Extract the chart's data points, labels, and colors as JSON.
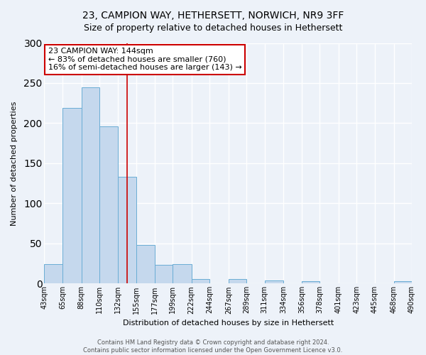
{
  "title": "23, CAMPION WAY, HETHERSETT, NORWICH, NR9 3FF",
  "subtitle": "Size of property relative to detached houses in Hethersett",
  "xlabel": "Distribution of detached houses by size in Hethersett",
  "ylabel": "Number of detached properties",
  "bin_edges": [
    43,
    65,
    88,
    110,
    132,
    155,
    177,
    199,
    222,
    244,
    267,
    289,
    311,
    334,
    356,
    378,
    401,
    423,
    445,
    468,
    490
  ],
  "bin_labels": [
    "43sqm",
    "65sqm",
    "88sqm",
    "110sqm",
    "132sqm",
    "155sqm",
    "177sqm",
    "199sqm",
    "222sqm",
    "244sqm",
    "267sqm",
    "289sqm",
    "311sqm",
    "334sqm",
    "356sqm",
    "378sqm",
    "401sqm",
    "423sqm",
    "445sqm",
    "468sqm",
    "490sqm"
  ],
  "counts": [
    24,
    219,
    245,
    196,
    133,
    48,
    23,
    24,
    6,
    0,
    6,
    0,
    4,
    0,
    3,
    0,
    0,
    0,
    0,
    3
  ],
  "bar_color": "#c5d8ed",
  "bar_edge_color": "#6aadd5",
  "property_size": 144,
  "vline_color": "#cc0000",
  "annotation_line1": "23 CAMPION WAY: 144sqm",
  "annotation_line2": "← 83% of detached houses are smaller (760)",
  "annotation_line3": "16% of semi-detached houses are larger (143) →",
  "annotation_box_color": "#ffffff",
  "annotation_box_edge_color": "#cc0000",
  "ylim": [
    0,
    300
  ],
  "yticks": [
    0,
    50,
    100,
    150,
    200,
    250,
    300
  ],
  "footer_line1": "Contains HM Land Registry data © Crown copyright and database right 2024.",
  "footer_line2": "Contains public sector information licensed under the Open Government Licence v3.0.",
  "bg_color": "#edf2f9",
  "plot_bg_color": "#edf2f9",
  "grid_color": "#ffffff",
  "title_fontsize": 10,
  "subtitle_fontsize": 9,
  "axis_label_fontsize": 8,
  "tick_fontsize": 7,
  "annotation_fontsize": 8,
  "footer_fontsize": 6
}
